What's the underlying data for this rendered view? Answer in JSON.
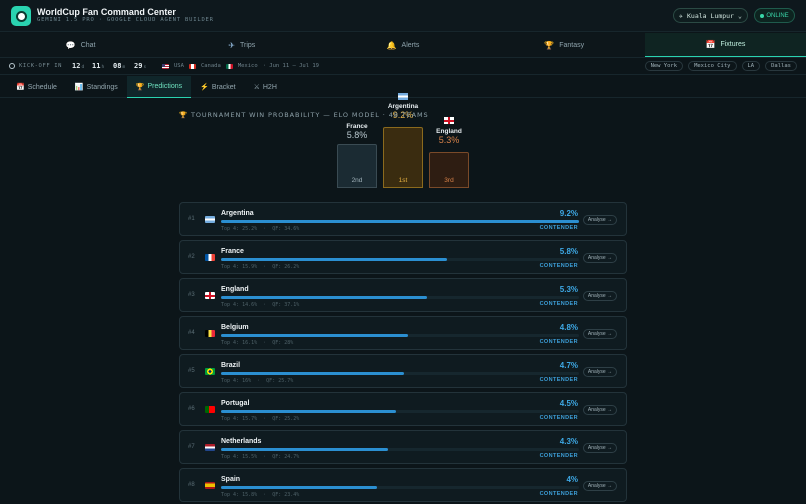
{
  "header": {
    "title": "WorldCup Fan Command Center",
    "subtitle": "GEMINI 1.5 PRO · GOOGLE CLOUD AGENT BUILDER",
    "location": "Kuala Lumpur",
    "status": "ONLINE"
  },
  "nav": {
    "tabs": [
      {
        "label": "Chat",
        "icon": "chat-icon"
      },
      {
        "label": "Trips",
        "icon": "airplane-icon"
      },
      {
        "label": "Alerts",
        "icon": "bell-icon"
      },
      {
        "label": "Fantasy",
        "icon": "trophy-icon"
      },
      {
        "label": "Fixtures",
        "icon": "calendar-icon"
      }
    ],
    "active": "Fixtures"
  },
  "countdown": {
    "label": "KICK-OFF IN",
    "days": "12",
    "days_unit": "d",
    "hours": "11",
    "hours_unit": "h",
    "minutes": "08",
    "minutes_unit": "m",
    "seconds": "29",
    "seconds_unit": "s",
    "hosts": [
      "USA",
      "Canada",
      "Mexico"
    ],
    "dates": "· Jun 11 – Jul 19",
    "cities": [
      "New York",
      "Mexico City",
      "LA",
      "Dallas"
    ]
  },
  "subtabs": {
    "schedule": "Schedule",
    "standings": "Standings",
    "predictions": "Predictions",
    "bracket": "Bracket",
    "h2h": "H2H"
  },
  "predictions": {
    "section_title": "TOURNAMENT WIN PROBABILITY — ELO MODEL · 48 TEAMS",
    "podium": [
      {
        "team": "France",
        "pct": "5.8%",
        "place": "2nd"
      },
      {
        "team": "Argentina",
        "pct": "9.2%",
        "place": "1st"
      },
      {
        "team": "England",
        "pct": "5.3%",
        "place": "3rd"
      }
    ],
    "analyse_label": "Analyse →",
    "teams": [
      {
        "rank": "#1",
        "name": "Argentina",
        "pct": "9.2%",
        "value": 9.2,
        "top4": "Top 4: 25.2%",
        "qf": "QF: 34.6%",
        "status": "CONTENDER"
      },
      {
        "rank": "#2",
        "name": "France",
        "pct": "5.8%",
        "value": 5.8,
        "top4": "Top 4: 15.9%",
        "qf": "QF: 26.2%",
        "status": "CONTENDER"
      },
      {
        "rank": "#3",
        "name": "England",
        "pct": "5.3%",
        "value": 5.3,
        "top4": "Top 4: 14.6%",
        "qf": "QF: 37.1%",
        "status": "CONTENDER"
      },
      {
        "rank": "#4",
        "name": "Belgium",
        "pct": "4.8%",
        "value": 4.8,
        "top4": "Top 4: 16.1%",
        "qf": "QF: 28%",
        "status": "CONTENDER"
      },
      {
        "rank": "#5",
        "name": "Brazil",
        "pct": "4.7%",
        "value": 4.7,
        "top4": "Top 4: 16%",
        "qf": "QF: 25.7%",
        "status": "CONTENDER"
      },
      {
        "rank": "#6",
        "name": "Portugal",
        "pct": "4.5%",
        "value": 4.5,
        "top4": "Top 4: 15.7%",
        "qf": "QF: 25.2%",
        "status": "CONTENDER"
      },
      {
        "rank": "#7",
        "name": "Netherlands",
        "pct": "4.3%",
        "value": 4.3,
        "top4": "Top 4: 15.5%",
        "qf": "QF: 24.7%",
        "status": "CONTENDER"
      },
      {
        "rank": "#8",
        "name": "Spain",
        "pct": "4%",
        "value": 4.0,
        "top4": "Top 4: 15.8%",
        "qf": "QF: 23.4%",
        "status": "CONTENDER"
      }
    ]
  }
}
